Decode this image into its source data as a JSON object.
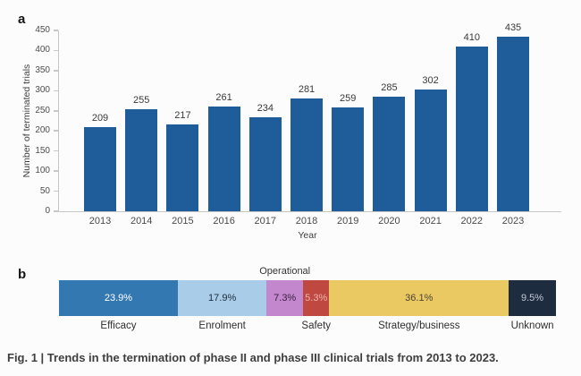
{
  "panel_a": {
    "label": "a"
  },
  "panel_b": {
    "label": "b"
  },
  "caption": "Fig. 1 | Trends in the termination of phase II and phase III clinical trials from 2013 to 2023.",
  "colors": {
    "bar_blue": "#1f5d9a",
    "axis_gray": "#c7c7c7",
    "tick_text": "#4d4d4d",
    "value_text": "#3a3a3a",
    "caption_text": "#3e3e3e"
  },
  "chart_data": [
    {
      "type": "bar",
      "categories": [
        "2013",
        "2014",
        "2015",
        "2016",
        "2017",
        "2018",
        "2019",
        "2020",
        "2021",
        "2022",
        "2023"
      ],
      "values": [
        209,
        255,
        217,
        261,
        234,
        281,
        259,
        285,
        302,
        410,
        435
      ],
      "xlabel": "Year",
      "ylabel": "Number of terminated trials",
      "ylim": [
        0,
        450
      ],
      "ytick_step": 50,
      "bar_color": "#1f5d9a",
      "grid": false,
      "legend": "none",
      "value_labels": true
    },
    {
      "type": "stacked-bar",
      "orientation": "horizontal",
      "unit": "%",
      "segments": [
        {
          "label": "Efficacy",
          "value": 23.9,
          "display": "23.9%",
          "color": "#3478b2",
          "text_color": "#ffffff",
          "label_position": "below"
        },
        {
          "label": "Enrolment",
          "value": 17.9,
          "display": "17.9%",
          "color": "#a9cce9",
          "text_color": "#1c2b3a",
          "label_position": "below"
        },
        {
          "label": "Operational",
          "value": 7.3,
          "display": "7.3%",
          "color": "#c287cd",
          "text_color": "#3f2144",
          "label_position": "above"
        },
        {
          "label": "Safety",
          "value": 5.3,
          "display": "5.3%",
          "color": "#bf4840",
          "text_color": "#edb3ae",
          "label_position": "below"
        },
        {
          "label": "Strategy/business",
          "value": 36.1,
          "display": "36.1%",
          "color": "#eac963",
          "text_color": "#4a4335",
          "label_position": "below"
        },
        {
          "label": "Unknown",
          "value": 9.5,
          "display": "9.5%",
          "color": "#1d2c3f",
          "text_color": "#c3cad3",
          "label_position": "below"
        }
      ]
    }
  ]
}
